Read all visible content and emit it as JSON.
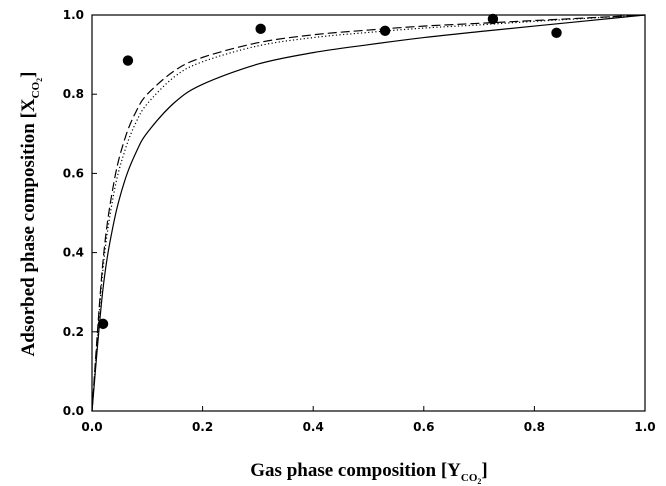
{
  "chart_data": {
    "type": "scatter",
    "xlabel": "Gas phase composition [Y",
    "xlabel_sub": "CO",
    "xlabel_sub2": "2",
    "xlabel_end": "]",
    "ylabel": "Adsorbed phase composition [X",
    "ylabel_sub": "CO",
    "ylabel_sub2": "2",
    "ylabel_end": "]",
    "xlim": [
      0.0,
      1.0
    ],
    "ylim": [
      0.0,
      1.0
    ],
    "xticks": [
      "0.0",
      "0.2",
      "0.4",
      "0.6",
      "0.8",
      "1.0"
    ],
    "yticks": [
      "0.0",
      "0.2",
      "0.4",
      "0.6",
      "0.8",
      "1.0"
    ],
    "grid": false,
    "series": [
      {
        "style": "markers",
        "marker": "filled-circle",
        "color": "#000000",
        "x": [
          0.02,
          0.065,
          0.305,
          0.53,
          0.725,
          0.84
        ],
        "y": [
          0.22,
          0.885,
          0.965,
          0.96,
          0.99,
          0.955
        ]
      },
      {
        "style": "solid",
        "color": "#000000",
        "x": [
          0.0,
          0.02,
          0.04,
          0.06,
          0.08,
          0.1,
          0.15,
          0.2,
          0.3,
          0.4,
          0.5,
          0.6,
          0.7,
          0.8,
          0.9,
          1.0
        ],
        "y": [
          0.0,
          0.31,
          0.48,
          0.585,
          0.654,
          0.703,
          0.78,
          0.825,
          0.876,
          0.905,
          0.925,
          0.943,
          0.958,
          0.972,
          0.986,
          1.0
        ]
      },
      {
        "style": "dotted",
        "color": "#000000",
        "x": [
          0.0,
          0.02,
          0.04,
          0.06,
          0.08,
          0.1,
          0.15,
          0.2,
          0.3,
          0.4,
          0.5,
          0.6,
          0.7,
          0.8,
          0.9,
          1.0
        ],
        "y": [
          0.0,
          0.36,
          0.553,
          0.66,
          0.73,
          0.776,
          0.845,
          0.882,
          0.922,
          0.943,
          0.956,
          0.967,
          0.975,
          0.984,
          0.992,
          1.0
        ]
      },
      {
        "style": "dashed",
        "color": "#000000",
        "x": [
          0.0,
          0.02,
          0.04,
          0.06,
          0.08,
          0.1,
          0.15,
          0.2,
          0.3,
          0.4,
          0.5,
          0.6,
          0.7,
          0.8,
          0.9,
          1.0
        ],
        "y": [
          0.0,
          0.38,
          0.58,
          0.69,
          0.757,
          0.8,
          0.86,
          0.893,
          0.93,
          0.95,
          0.962,
          0.972,
          0.979,
          0.986,
          0.993,
          1.0
        ]
      }
    ]
  }
}
